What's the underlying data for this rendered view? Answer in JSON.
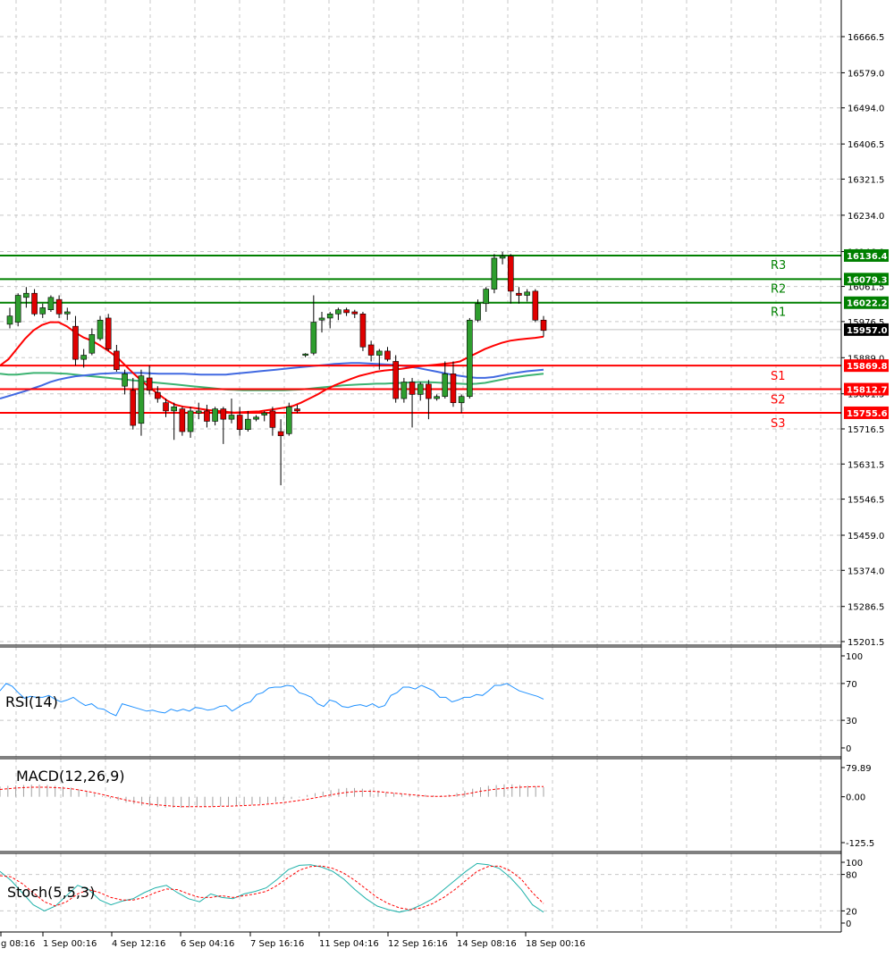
{
  "chart_data": {
    "type": "candlestick",
    "price_axis": {
      "ticks": [
        "16666.5",
        "16579.0",
        "16494.0",
        "16406.5",
        "16321.5",
        "16234.0",
        "16146.0",
        "16061.5",
        "15976.5",
        "15889.0",
        "15801.5",
        "15716.5",
        "15631.5",
        "15546.5",
        "15459.0",
        "15374.0",
        "15286.5",
        "15201.5"
      ],
      "range": [
        15190,
        16760
      ],
      "current_price": "15957.0"
    },
    "time_axis": {
      "labels": [
        "g 08:16",
        "1 Sep 00:16",
        "4 Sep 12:16",
        "6 Sep 04:16",
        "7 Sep 16:16",
        "11 Sep 04:16",
        "12 Sep 16:16",
        "14 Sep 08:16",
        "18 Sep 00:16"
      ]
    },
    "levels": [
      {
        "name": "R3",
        "value": "16136.4",
        "color": "#008000"
      },
      {
        "name": "R2",
        "value": "16079.3",
        "color": "#008000"
      },
      {
        "name": "R1",
        "value": "16022.2",
        "color": "#008000"
      },
      {
        "name": "S1",
        "value": "15869.8",
        "color": "#ff0000"
      },
      {
        "name": "S2",
        "value": "15812.7",
        "color": "#ff0000"
      },
      {
        "name": "S3",
        "value": "15755.6",
        "color": "#ff0000"
      }
    ],
    "candles": [
      {
        "o": 15970,
        "h": 16010,
        "l": 15960,
        "c": 15990
      },
      {
        "o": 15975,
        "h": 16045,
        "l": 15965,
        "c": 16040
      },
      {
        "o": 16035,
        "h": 16060,
        "l": 16010,
        "c": 16045
      },
      {
        "o": 16045,
        "h": 16055,
        "l": 15990,
        "c": 15995
      },
      {
        "o": 15995,
        "h": 16020,
        "l": 15985,
        "c": 16010
      },
      {
        "o": 16005,
        "h": 16040,
        "l": 16000,
        "c": 16035
      },
      {
        "o": 16030,
        "h": 16040,
        "l": 15985,
        "c": 15995
      },
      {
        "o": 15995,
        "h": 16010,
        "l": 15980,
        "c": 16000
      },
      {
        "o": 15965,
        "h": 15990,
        "l": 15870,
        "c": 15885
      },
      {
        "o": 15885,
        "h": 15910,
        "l": 15865,
        "c": 15895
      },
      {
        "o": 15900,
        "h": 15960,
        "l": 15895,
        "c": 15945
      },
      {
        "o": 15935,
        "h": 15990,
        "l": 15930,
        "c": 15980
      },
      {
        "o": 15985,
        "h": 15995,
        "l": 15905,
        "c": 15910
      },
      {
        "o": 15905,
        "h": 15920,
        "l": 15855,
        "c": 15860
      },
      {
        "o": 15820,
        "h": 15860,
        "l": 15800,
        "c": 15850
      },
      {
        "o": 15810,
        "h": 15840,
        "l": 15715,
        "c": 15725
      },
      {
        "o": 15730,
        "h": 15860,
        "l": 15700,
        "c": 15845
      },
      {
        "o": 15840,
        "h": 15870,
        "l": 15800,
        "c": 15810
      },
      {
        "o": 15805,
        "h": 15820,
        "l": 15780,
        "c": 15790
      },
      {
        "o": 15780,
        "h": 15790,
        "l": 15745,
        "c": 15760
      },
      {
        "o": 15760,
        "h": 15780,
        "l": 15690,
        "c": 15770
      },
      {
        "o": 15765,
        "h": 15770,
        "l": 15700,
        "c": 15710
      },
      {
        "o": 15710,
        "h": 15770,
        "l": 15695,
        "c": 15760
      },
      {
        "o": 15755,
        "h": 15780,
        "l": 15740,
        "c": 15760
      },
      {
        "o": 15760,
        "h": 15775,
        "l": 15720,
        "c": 15735
      },
      {
        "o": 15735,
        "h": 15770,
        "l": 15725,
        "c": 15765
      },
      {
        "o": 15765,
        "h": 15770,
        "l": 15680,
        "c": 15740
      },
      {
        "o": 15740,
        "h": 15790,
        "l": 15730,
        "c": 15750
      },
      {
        "o": 15750,
        "h": 15770,
        "l": 15700,
        "c": 15715
      },
      {
        "o": 15715,
        "h": 15760,
        "l": 15710,
        "c": 15740
      },
      {
        "o": 15740,
        "h": 15750,
        "l": 15735,
        "c": 15745
      },
      {
        "o": 15750,
        "h": 15760,
        "l": 15735,
        "c": 15755
      },
      {
        "o": 15760,
        "h": 15770,
        "l": 15700,
        "c": 15720
      },
      {
        "o": 15710,
        "h": 15740,
        "l": 15580,
        "c": 15700
      },
      {
        "o": 15705,
        "h": 15780,
        "l": 15700,
        "c": 15770
      },
      {
        "o": 15765,
        "h": 15775,
        "l": 15755,
        "c": 15760
      },
      {
        "o": 15895,
        "h": 15900,
        "l": 15890,
        "c": 15898
      },
      {
        "o": 15900,
        "h": 16040,
        "l": 15895,
        "c": 15975
      },
      {
        "o": 15980,
        "h": 16000,
        "l": 15950,
        "c": 15985
      },
      {
        "o": 15985,
        "h": 16000,
        "l": 15960,
        "c": 15995
      },
      {
        "o": 15995,
        "h": 16010,
        "l": 15980,
        "c": 16005
      },
      {
        "o": 16005,
        "h": 16010,
        "l": 15990,
        "c": 15998
      },
      {
        "o": 16000,
        "h": 16005,
        "l": 15985,
        "c": 15995
      },
      {
        "o": 15995,
        "h": 16000,
        "l": 15905,
        "c": 15915
      },
      {
        "o": 15920,
        "h": 15930,
        "l": 15880,
        "c": 15895
      },
      {
        "o": 15895,
        "h": 15910,
        "l": 15860,
        "c": 15905
      },
      {
        "o": 15905,
        "h": 15915,
        "l": 15880,
        "c": 15885
      },
      {
        "o": 15880,
        "h": 15895,
        "l": 15780,
        "c": 15790
      },
      {
        "o": 15790,
        "h": 15840,
        "l": 15780,
        "c": 15830
      },
      {
        "o": 15830,
        "h": 15840,
        "l": 15720,
        "c": 15800
      },
      {
        "o": 15800,
        "h": 15830,
        "l": 15785,
        "c": 15825
      },
      {
        "o": 15825,
        "h": 15835,
        "l": 15740,
        "c": 15790
      },
      {
        "o": 15790,
        "h": 15800,
        "l": 15785,
        "c": 15795
      },
      {
        "o": 15795,
        "h": 15880,
        "l": 15790,
        "c": 15850
      },
      {
        "o": 15850,
        "h": 15880,
        "l": 15770,
        "c": 15780
      },
      {
        "o": 15780,
        "h": 15800,
        "l": 15755,
        "c": 15795
      },
      {
        "o": 15795,
        "h": 15985,
        "l": 15790,
        "c": 15980
      },
      {
        "o": 15980,
        "h": 16030,
        "l": 15975,
        "c": 16020
      },
      {
        "o": 16020,
        "h": 16060,
        "l": 16000,
        "c": 16055
      },
      {
        "o": 16055,
        "h": 16140,
        "l": 16045,
        "c": 16130
      },
      {
        "o": 16130,
        "h": 16145,
        "l": 16115,
        "c": 16135
      },
      {
        "o": 16135,
        "h": 16140,
        "l": 16020,
        "c": 16050
      },
      {
        "o": 16045,
        "h": 16060,
        "l": 16020,
        "c": 16040
      },
      {
        "o": 16040,
        "h": 16055,
        "l": 16025,
        "c": 16048
      },
      {
        "o": 16050,
        "h": 16055,
        "l": 15975,
        "c": 15980
      },
      {
        "o": 15980,
        "h": 15990,
        "l": 15940,
        "c": 15955
      }
    ],
    "ma_red": [
      15870,
      15885,
      15910,
      15935,
      15955,
      15968,
      15975,
      15975,
      15965,
      15950,
      15938,
      15930,
      15918,
      15905,
      15890,
      15870,
      15850,
      15832,
      15815,
      15800,
      15785,
      15775,
      15770,
      15768,
      15765,
      15762,
      15760,
      15758,
      15756,
      15757,
      15758,
      15759,
      15762,
      15765,
      15768,
      15772,
      15780,
      15790,
      15800,
      15812,
      15822,
      15830,
      15838,
      15845,
      15850,
      15855,
      15858,
      15860,
      15862,
      15865,
      15868,
      15870,
      15872,
      15874,
      15876,
      15880,
      15890,
      15900,
      15910,
      15918,
      15925,
      15930,
      15933,
      15935,
      15937,
      15940
    ],
    "ma_green": [
      15850,
      15848,
      15848,
      15850,
      15852,
      15852,
      15852,
      15851,
      15850,
      15848,
      15846,
      15844,
      15842,
      15840,
      15838,
      15836,
      15834,
      15832,
      15830,
      15828,
      15826,
      15824,
      15822,
      15820,
      15818,
      15816,
      15814,
      15812,
      15811,
      15810,
      15810,
      15810,
      15810,
      15810,
      15810,
      15811,
      15812,
      15814,
      15816,
      15818,
      15820,
      15822,
      15823,
      15824,
      15825,
      15826,
      15826,
      15827,
      15828,
      15829,
      15830,
      15830,
      15829,
      15828,
      15827,
      15826,
      15825,
      15826,
      15828,
      15832,
      15836,
      15840,
      15843,
      15846,
      15848,
      15850
    ],
    "ma_blue": [
      15790,
      15796,
      15802,
      15808,
      15815,
      15822,
      15830,
      15836,
      15840,
      15844,
      15846,
      15848,
      15850,
      15851,
      15852,
      15852,
      15852,
      15852,
      15851,
      15850,
      15850,
      15850,
      15850,
      15849,
      15848,
      15848,
      15848,
      15848,
      15850,
      15852,
      15854,
      15856,
      15858,
      15860,
      15862,
      15864,
      15866,
      15868,
      15870,
      15872,
      15874,
      15875,
      15876,
      15876,
      15875,
      15874,
      15873,
      15872,
      15870,
      15867,
      15864,
      15860,
      15856,
      15852,
      15848,
      15845,
      15842,
      15840,
      15840,
      15842,
      15846,
      15850,
      15853,
      15856,
      15858,
      15860
    ],
    "rsi": {
      "label": "RSI(14)",
      "ticks": [
        "100",
        "70",
        "30",
        "0"
      ],
      "range": [
        0,
        100
      ],
      "values": [
        62,
        70,
        67,
        60,
        54,
        56,
        55,
        55,
        57,
        53,
        50,
        52,
        55,
        50,
        46,
        48,
        43,
        42,
        38,
        35,
        48,
        46,
        44,
        42,
        40,
        41,
        39,
        38,
        42,
        40,
        42,
        40,
        44,
        43,
        41,
        42,
        45,
        46,
        40,
        44,
        48,
        50,
        58,
        60,
        65,
        66,
        66,
        68,
        67,
        60,
        58,
        55,
        48,
        45,
        52,
        50,
        45,
        44,
        46,
        47,
        45,
        48,
        44,
        46,
        57,
        60,
        66,
        66,
        64,
        68,
        65,
        62,
        55,
        55,
        50,
        52,
        55,
        55,
        58,
        57,
        62,
        68,
        68,
        70,
        66,
        62,
        60,
        58,
        56,
        53
      ]
    },
    "macd": {
      "label": "MACD(12,26,9)",
      "ticks": [
        "79.89",
        "0.00",
        "-125.5"
      ],
      "range": [
        -125.5,
        79.89
      ],
      "histogram": [
        28,
        30,
        31,
        32,
        33,
        33,
        32,
        30,
        28,
        25,
        20,
        15,
        8,
        2,
        -5,
        -10,
        -16,
        -20,
        -24,
        -26,
        -28,
        -30,
        -30,
        -30,
        -29,
        -28,
        -27,
        -27,
        -26,
        -26,
        -25,
        -24,
        -22,
        -20,
        -18,
        -14,
        -10,
        -6,
        -2,
        5,
        10,
        14,
        18,
        22,
        24,
        24,
        22,
        20,
        16,
        12,
        10,
        8,
        6,
        5,
        5,
        4,
        4,
        6,
        10,
        16,
        22,
        26,
        30,
        32,
        34,
        34,
        32,
        30,
        28,
        26
      ],
      "signal": [
        20,
        22,
        24,
        25,
        26,
        26,
        26,
        25,
        24,
        22,
        19,
        15,
        11,
        6,
        1,
        -4,
        -9,
        -13,
        -17,
        -20,
        -22,
        -24,
        -26,
        -27,
        -27,
        -27,
        -27,
        -27,
        -26,
        -26,
        -25,
        -24,
        -23,
        -22,
        -20,
        -18,
        -16,
        -13,
        -10,
        -7,
        -3,
        1,
        5,
        9,
        12,
        14,
        15,
        15,
        14,
        12,
        10,
        8,
        6,
        4,
        2,
        1,
        1,
        2,
        4,
        7,
        11,
        15,
        18,
        21,
        23,
        25,
        26,
        27,
        28,
        28
      ]
    },
    "stoch": {
      "label": "Stoch(5,5,3)",
      "ticks": [
        "100",
        "80",
        "20",
        "0"
      ],
      "range": [
        0,
        100
      ],
      "main": [
        85,
        70,
        50,
        30,
        20,
        28,
        45,
        62,
        55,
        38,
        30,
        36,
        40,
        50,
        58,
        62,
        50,
        40,
        35,
        48,
        42,
        40,
        48,
        52,
        58,
        72,
        88,
        95,
        96,
        92,
        85,
        72,
        55,
        40,
        28,
        22,
        18,
        22,
        30,
        40,
        55,
        70,
        85,
        98,
        96,
        90,
        75,
        55,
        30,
        18
      ],
      "signal": [
        78,
        76,
        65,
        50,
        35,
        28,
        35,
        48,
        55,
        50,
        42,
        38,
        38,
        42,
        50,
        56,
        55,
        48,
        42,
        42,
        45,
        42,
        45,
        48,
        52,
        62,
        75,
        87,
        93,
        94,
        90,
        82,
        70,
        56,
        42,
        32,
        25,
        22,
        25,
        32,
        42,
        55,
        70,
        85,
        93,
        94,
        86,
        72,
        50,
        32
      ]
    }
  }
}
